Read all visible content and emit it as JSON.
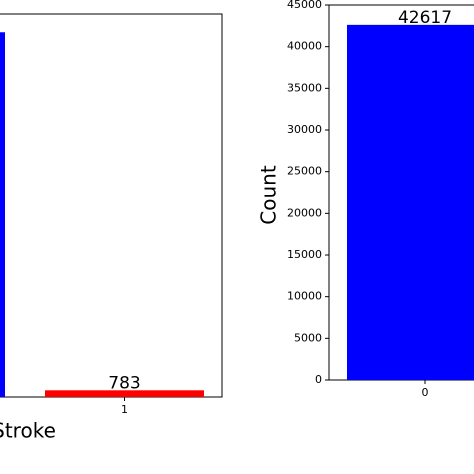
{
  "chart_data": [
    {
      "type": "bar",
      "xlabel": "Stroke",
      "categories": [
        null,
        "1"
      ],
      "values": [
        42617,
        783
      ],
      "colors": [
        "#0000ff",
        "#ff0000"
      ],
      "ylim": [
        0,
        44750
      ]
    },
    {
      "type": "bar",
      "ylabel": "Count",
      "categories": [
        "0"
      ],
      "values": [
        42617
      ],
      "colors": [
        "#0000ff"
      ],
      "ylim": [
        0,
        45000
      ],
      "yticks": [
        0,
        5000,
        10000,
        15000,
        20000,
        25000,
        30000,
        35000,
        40000,
        45000
      ]
    }
  ]
}
